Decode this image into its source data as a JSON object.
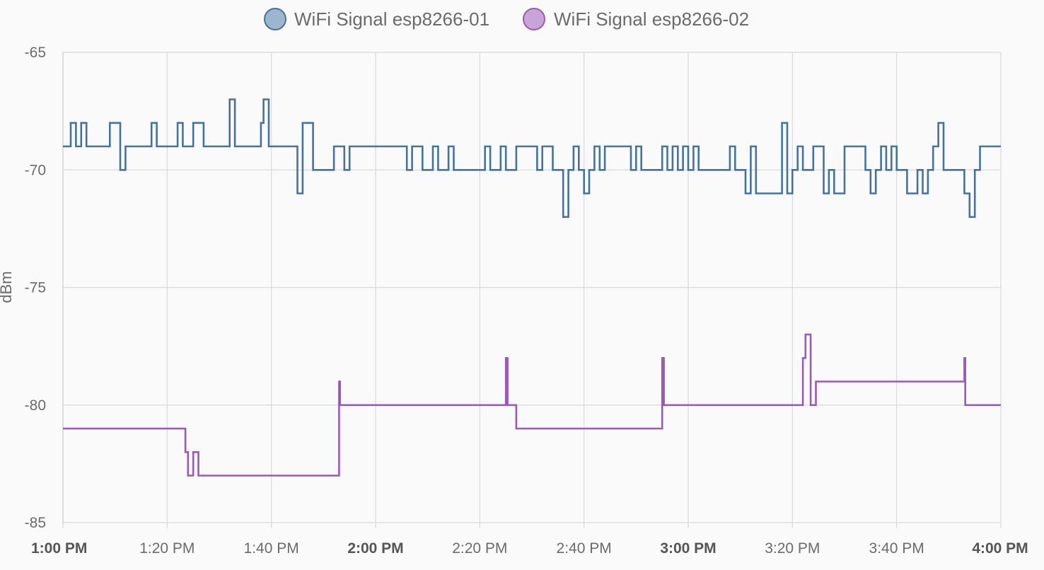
{
  "chart_data": {
    "type": "line",
    "step": true,
    "ylabel": "dBm",
    "ylim": [
      -85,
      -65
    ],
    "y_ticks": [
      "-65",
      "-70",
      "-75",
      "-80",
      "-85"
    ],
    "xlim": [
      "1:00 PM",
      "4:00 PM"
    ],
    "x_ticks": [
      {
        "label": "1:00 PM",
        "major": true
      },
      {
        "label": "1:20 PM",
        "major": false
      },
      {
        "label": "1:40 PM",
        "major": false
      },
      {
        "label": "2:00 PM",
        "major": true
      },
      {
        "label": "2:20 PM",
        "major": false
      },
      {
        "label": "2:40 PM",
        "major": false
      },
      {
        "label": "3:00 PM",
        "major": true
      },
      {
        "label": "3:20 PM",
        "major": false
      },
      {
        "label": "3:40 PM",
        "major": false
      },
      {
        "label": "4:00 PM",
        "major": true
      }
    ],
    "grid": true,
    "legend": "top-center",
    "series": [
      {
        "name": "WiFi Signal esp8266-01",
        "color": "#44739e",
        "fill": "#9db5cd",
        "points": [
          [
            "1:00:00 PM",
            -69
          ],
          [
            "1:01:30 PM",
            -68
          ],
          [
            "1:02:30 PM",
            -69
          ],
          [
            "1:03:30 PM",
            -68
          ],
          [
            "1:04:30 PM",
            -69
          ],
          [
            "1:09:00 PM",
            -68
          ],
          [
            "1:11:00 PM",
            -70
          ],
          [
            "1:12:00 PM",
            -69
          ],
          [
            "1:17:00 PM",
            -68
          ],
          [
            "1:18:00 PM",
            -69
          ],
          [
            "1:22:00 PM",
            -68
          ],
          [
            "1:23:00 PM",
            -69
          ],
          [
            "1:25:00 PM",
            -68
          ],
          [
            "1:27:00 PM",
            -69
          ],
          [
            "1:32:00 PM",
            -67
          ],
          [
            "1:33:00 PM",
            -69
          ],
          [
            "1:38:00 PM",
            -68
          ],
          [
            "1:38:30 PM",
            -67
          ],
          [
            "1:39:30 PM",
            -69
          ],
          [
            "1:45:00 PM",
            -71
          ],
          [
            "1:46:00 PM",
            -68
          ],
          [
            "1:48:00 PM",
            -70
          ],
          [
            "1:52:00 PM",
            -69
          ],
          [
            "1:54:00 PM",
            -70
          ],
          [
            "1:55:00 PM",
            -69
          ],
          [
            "2:06:00 PM",
            -70
          ],
          [
            "2:07:00 PM",
            -69
          ],
          [
            "2:09:00 PM",
            -70
          ],
          [
            "2:11:00 PM",
            -69
          ],
          [
            "2:12:00 PM",
            -70
          ],
          [
            "2:14:00 PM",
            -69
          ],
          [
            "2:15:00 PM",
            -70
          ],
          [
            "2:21:00 PM",
            -69
          ],
          [
            "2:22:00 PM",
            -70
          ],
          [
            "2:24:00 PM",
            -69
          ],
          [
            "2:25:00 PM",
            -70
          ],
          [
            "2:27:00 PM",
            -69
          ],
          [
            "2:31:00 PM",
            -70
          ],
          [
            "2:32:00 PM",
            -69
          ],
          [
            "2:34:00 PM",
            -70
          ],
          [
            "2:36:00 PM",
            -72
          ],
          [
            "2:37:00 PM",
            -70
          ],
          [
            "2:38:00 PM",
            -69
          ],
          [
            "2:39:00 PM",
            -70
          ],
          [
            "2:40:00 PM",
            -71
          ],
          [
            "2:41:00 PM",
            -70
          ],
          [
            "2:42:00 PM",
            -69
          ],
          [
            "2:43:00 PM",
            -70
          ],
          [
            "2:44:00 PM",
            -69
          ],
          [
            "2:49:00 PM",
            -70
          ],
          [
            "2:50:00 PM",
            -69
          ],
          [
            "2:51:00 PM",
            -70
          ],
          [
            "2:55:00 PM",
            -69
          ],
          [
            "2:56:00 PM",
            -70
          ],
          [
            "2:57:00 PM",
            -69
          ],
          [
            "2:58:00 PM",
            -70
          ],
          [
            "2:59:00 PM",
            -69
          ],
          [
            "3:00:00 PM",
            -70
          ],
          [
            "3:01:00 PM",
            -69
          ],
          [
            "3:02:00 PM",
            -70
          ],
          [
            "3:08:00 PM",
            -69
          ],
          [
            "3:09:00 PM",
            -70
          ],
          [
            "3:11:00 PM",
            -71
          ],
          [
            "3:12:00 PM",
            -69
          ],
          [
            "3:13:00 PM",
            -71
          ],
          [
            "3:18:00 PM",
            -68
          ],
          [
            "3:19:00 PM",
            -71
          ],
          [
            "3:20:00 PM",
            -70
          ],
          [
            "3:21:00 PM",
            -69
          ],
          [
            "3:22:00 PM",
            -70
          ],
          [
            "3:24:00 PM",
            -69
          ],
          [
            "3:26:00 PM",
            -71
          ],
          [
            "3:27:00 PM",
            -70
          ],
          [
            "3:28:00 PM",
            -71
          ],
          [
            "3:30:00 PM",
            -69
          ],
          [
            "3:34:00 PM",
            -70
          ],
          [
            "3:35:00 PM",
            -71
          ],
          [
            "3:36:00 PM",
            -70
          ],
          [
            "3:37:00 PM",
            -69
          ],
          [
            "3:38:00 PM",
            -70
          ],
          [
            "3:39:00 PM",
            -69
          ],
          [
            "3:40:00 PM",
            -70
          ],
          [
            "3:42:00 PM",
            -71
          ],
          [
            "3:44:00 PM",
            -70
          ],
          [
            "3:45:00 PM",
            -71
          ],
          [
            "3:46:00 PM",
            -70
          ],
          [
            "3:47:00 PM",
            -69
          ],
          [
            "3:48:00 PM",
            -68
          ],
          [
            "3:49:00 PM",
            -70
          ],
          [
            "3:53:00 PM",
            -71
          ],
          [
            "3:54:00 PM",
            -72
          ],
          [
            "3:55:00 PM",
            -70
          ],
          [
            "3:56:00 PM",
            -69
          ],
          [
            "4:00:00 PM",
            -69
          ]
        ]
      },
      {
        "name": "WiFi Signal esp8266-02",
        "color": "#9b59b6",
        "fill": "#c9a4d6",
        "points": [
          [
            "1:00:00 PM",
            -81
          ],
          [
            "1:23:30 PM",
            -82
          ],
          [
            "1:24:00 PM",
            -83
          ],
          [
            "1:25:00 PM",
            -82
          ],
          [
            "1:26:00 PM",
            -83
          ],
          [
            "1:53:00 PM",
            -79
          ],
          [
            "1:53:10 PM",
            -80
          ],
          [
            "2:25:00 PM",
            -78
          ],
          [
            "2:25:20 PM",
            -80
          ],
          [
            "2:27:00 PM",
            -81
          ],
          [
            "2:55:00 PM",
            -78
          ],
          [
            "2:55:20 PM",
            -80
          ],
          [
            "3:22:00 PM",
            -78
          ],
          [
            "3:22:30 PM",
            -77
          ],
          [
            "3:23:30 PM",
            -80
          ],
          [
            "3:24:30 PM",
            -79
          ],
          [
            "3:53:00 PM",
            -78
          ],
          [
            "3:53:10 PM",
            -80
          ],
          [
            "4:00:00 PM",
            -80
          ]
        ]
      }
    ]
  }
}
